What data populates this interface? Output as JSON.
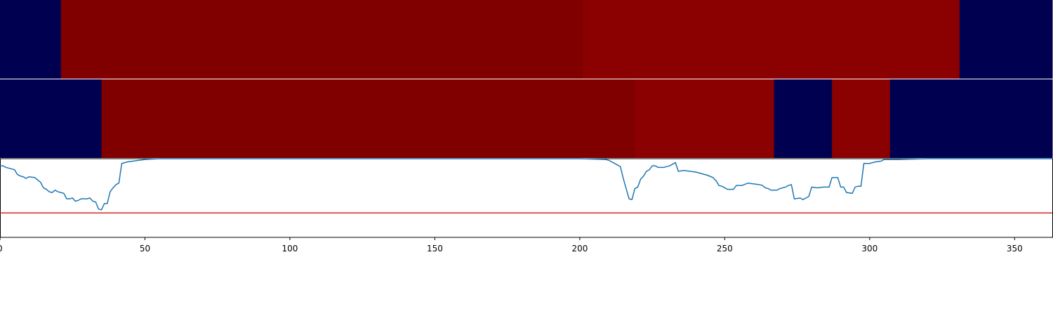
{
  "chart_data": [
    {
      "type": "heatmap",
      "panel": "top",
      "x_range": [
        0,
        363
      ],
      "colors": {
        "low": "#000050",
        "high_a": "#800000",
        "high_b": "#8b0000"
      },
      "segments": [
        {
          "start": 0,
          "end": 21,
          "level": "low"
        },
        {
          "start": 21,
          "end": 201,
          "level": "high_a"
        },
        {
          "start": 201,
          "end": 331,
          "level": "high_b"
        },
        {
          "start": 331,
          "end": 363,
          "level": "low"
        }
      ]
    },
    {
      "type": "heatmap",
      "panel": "middle",
      "x_range": [
        0,
        363
      ],
      "colors": {
        "low": "#000050",
        "high_a": "#800000",
        "high_b": "#8b0000"
      },
      "segments": [
        {
          "start": 0,
          "end": 35,
          "level": "low"
        },
        {
          "start": 35,
          "end": 219,
          "level": "high_a"
        },
        {
          "start": 219,
          "end": 267,
          "level": "high_b"
        },
        {
          "start": 267,
          "end": 287,
          "level": "low"
        },
        {
          "start": 287,
          "end": 307,
          "level": "high_b"
        },
        {
          "start": 307,
          "end": 363,
          "level": "low"
        }
      ]
    },
    {
      "type": "line",
      "panel": "bottom",
      "xlim": [
        0,
        363
      ],
      "ylim": [
        0,
        1
      ],
      "grid": false,
      "line_color": "#1f77b4",
      "threshold": {
        "value": 0.31,
        "color": "#d62728"
      },
      "x_ticks": [
        0,
        50,
        100,
        150,
        200,
        250,
        300,
        350
      ],
      "x_tick_labels": [
        "0",
        "50",
        "100",
        "150",
        "200",
        "250",
        "300",
        "350"
      ],
      "series": [
        {
          "points": [
            [
              0,
              0.91
            ],
            [
              1,
              0.91
            ],
            [
              2,
              0.89
            ],
            [
              4,
              0.87
            ],
            [
              5,
              0.86
            ],
            [
              6,
              0.8
            ],
            [
              7,
              0.78
            ],
            [
              8,
              0.77
            ],
            [
              9,
              0.75
            ],
            [
              10,
              0.77
            ],
            [
              12,
              0.76
            ],
            [
              13,
              0.73
            ],
            [
              14,
              0.7
            ],
            [
              15,
              0.63
            ],
            [
              16,
              0.61
            ],
            [
              17,
              0.58
            ],
            [
              18,
              0.57
            ],
            [
              19,
              0.6
            ],
            [
              20,
              0.58
            ],
            [
              22,
              0.56
            ],
            [
              23,
              0.49
            ],
            [
              24,
              0.49
            ],
            [
              25,
              0.5
            ],
            [
              26,
              0.46
            ],
            [
              27,
              0.47
            ],
            [
              28,
              0.49
            ],
            [
              30,
              0.49
            ],
            [
              31,
              0.5
            ],
            [
              32,
              0.46
            ],
            [
              33,
              0.45
            ],
            [
              34,
              0.36
            ],
            [
              35,
              0.35
            ],
            [
              36,
              0.43
            ],
            [
              37,
              0.43
            ],
            [
              38,
              0.58
            ],
            [
              39,
              0.63
            ],
            [
              40,
              0.67
            ],
            [
              41,
              0.69
            ],
            [
              42,
              0.94
            ],
            [
              43,
              0.95
            ],
            [
              44,
              0.96
            ],
            [
              46,
              0.97
            ],
            [
              48,
              0.98
            ],
            [
              50,
              0.99
            ],
            [
              55,
              1.0
            ],
            [
              100,
              1.0
            ],
            [
              150,
              1.0
            ],
            [
              200,
              1.0
            ],
            [
              209,
              0.99
            ],
            [
              210,
              0.98
            ],
            [
              211,
              0.96
            ],
            [
              212,
              0.94
            ],
            [
              213,
              0.92
            ],
            [
              214,
              0.9
            ],
            [
              215,
              0.75
            ],
            [
              216,
              0.62
            ],
            [
              217,
              0.49
            ],
            [
              218,
              0.48
            ],
            [
              219,
              0.62
            ],
            [
              220,
              0.64
            ],
            [
              221,
              0.74
            ],
            [
              222,
              0.78
            ],
            [
              223,
              0.84
            ],
            [
              224,
              0.86
            ],
            [
              225,
              0.91
            ],
            [
              226,
              0.91
            ],
            [
              227,
              0.89
            ],
            [
              229,
              0.89
            ],
            [
              230,
              0.9
            ],
            [
              231,
              0.91
            ],
            [
              232,
              0.93
            ],
            [
              233,
              0.95
            ],
            [
              234,
              0.84
            ],
            [
              236,
              0.85
            ],
            [
              238,
              0.84
            ],
            [
              240,
              0.83
            ],
            [
              242,
              0.81
            ],
            [
              244,
              0.79
            ],
            [
              246,
              0.76
            ],
            [
              247,
              0.72
            ],
            [
              248,
              0.66
            ],
            [
              249,
              0.65
            ],
            [
              250,
              0.63
            ],
            [
              251,
              0.61
            ],
            [
              252,
              0.61
            ],
            [
              253,
              0.61
            ],
            [
              254,
              0.66
            ],
            [
              256,
              0.66
            ],
            [
              258,
              0.69
            ],
            [
              260,
              0.68
            ],
            [
              262,
              0.67
            ],
            [
              263,
              0.66
            ],
            [
              264,
              0.63
            ],
            [
              265,
              0.62
            ],
            [
              266,
              0.6
            ],
            [
              268,
              0.6
            ],
            [
              269,
              0.62
            ],
            [
              270,
              0.63
            ],
            [
              271,
              0.64
            ],
            [
              272,
              0.66
            ],
            [
              273,
              0.67
            ],
            [
              274,
              0.49
            ],
            [
              276,
              0.5
            ],
            [
              277,
              0.48
            ],
            [
              279,
              0.52
            ],
            [
              280,
              0.64
            ],
            [
              282,
              0.63
            ],
            [
              284,
              0.64
            ],
            [
              286,
              0.64
            ],
            [
              287,
              0.76
            ],
            [
              289,
              0.76
            ],
            [
              290,
              0.64
            ],
            [
              291,
              0.64
            ],
            [
              292,
              0.57
            ],
            [
              294,
              0.56
            ],
            [
              295,
              0.64
            ],
            [
              296,
              0.65
            ],
            [
              297,
              0.65
            ],
            [
              298,
              0.94
            ],
            [
              300,
              0.94
            ],
            [
              302,
              0.96
            ],
            [
              304,
              0.97
            ],
            [
              305,
              0.99
            ],
            [
              310,
              0.99
            ],
            [
              320,
              1.0
            ],
            [
              363,
              1.0
            ]
          ]
        }
      ]
    }
  ]
}
